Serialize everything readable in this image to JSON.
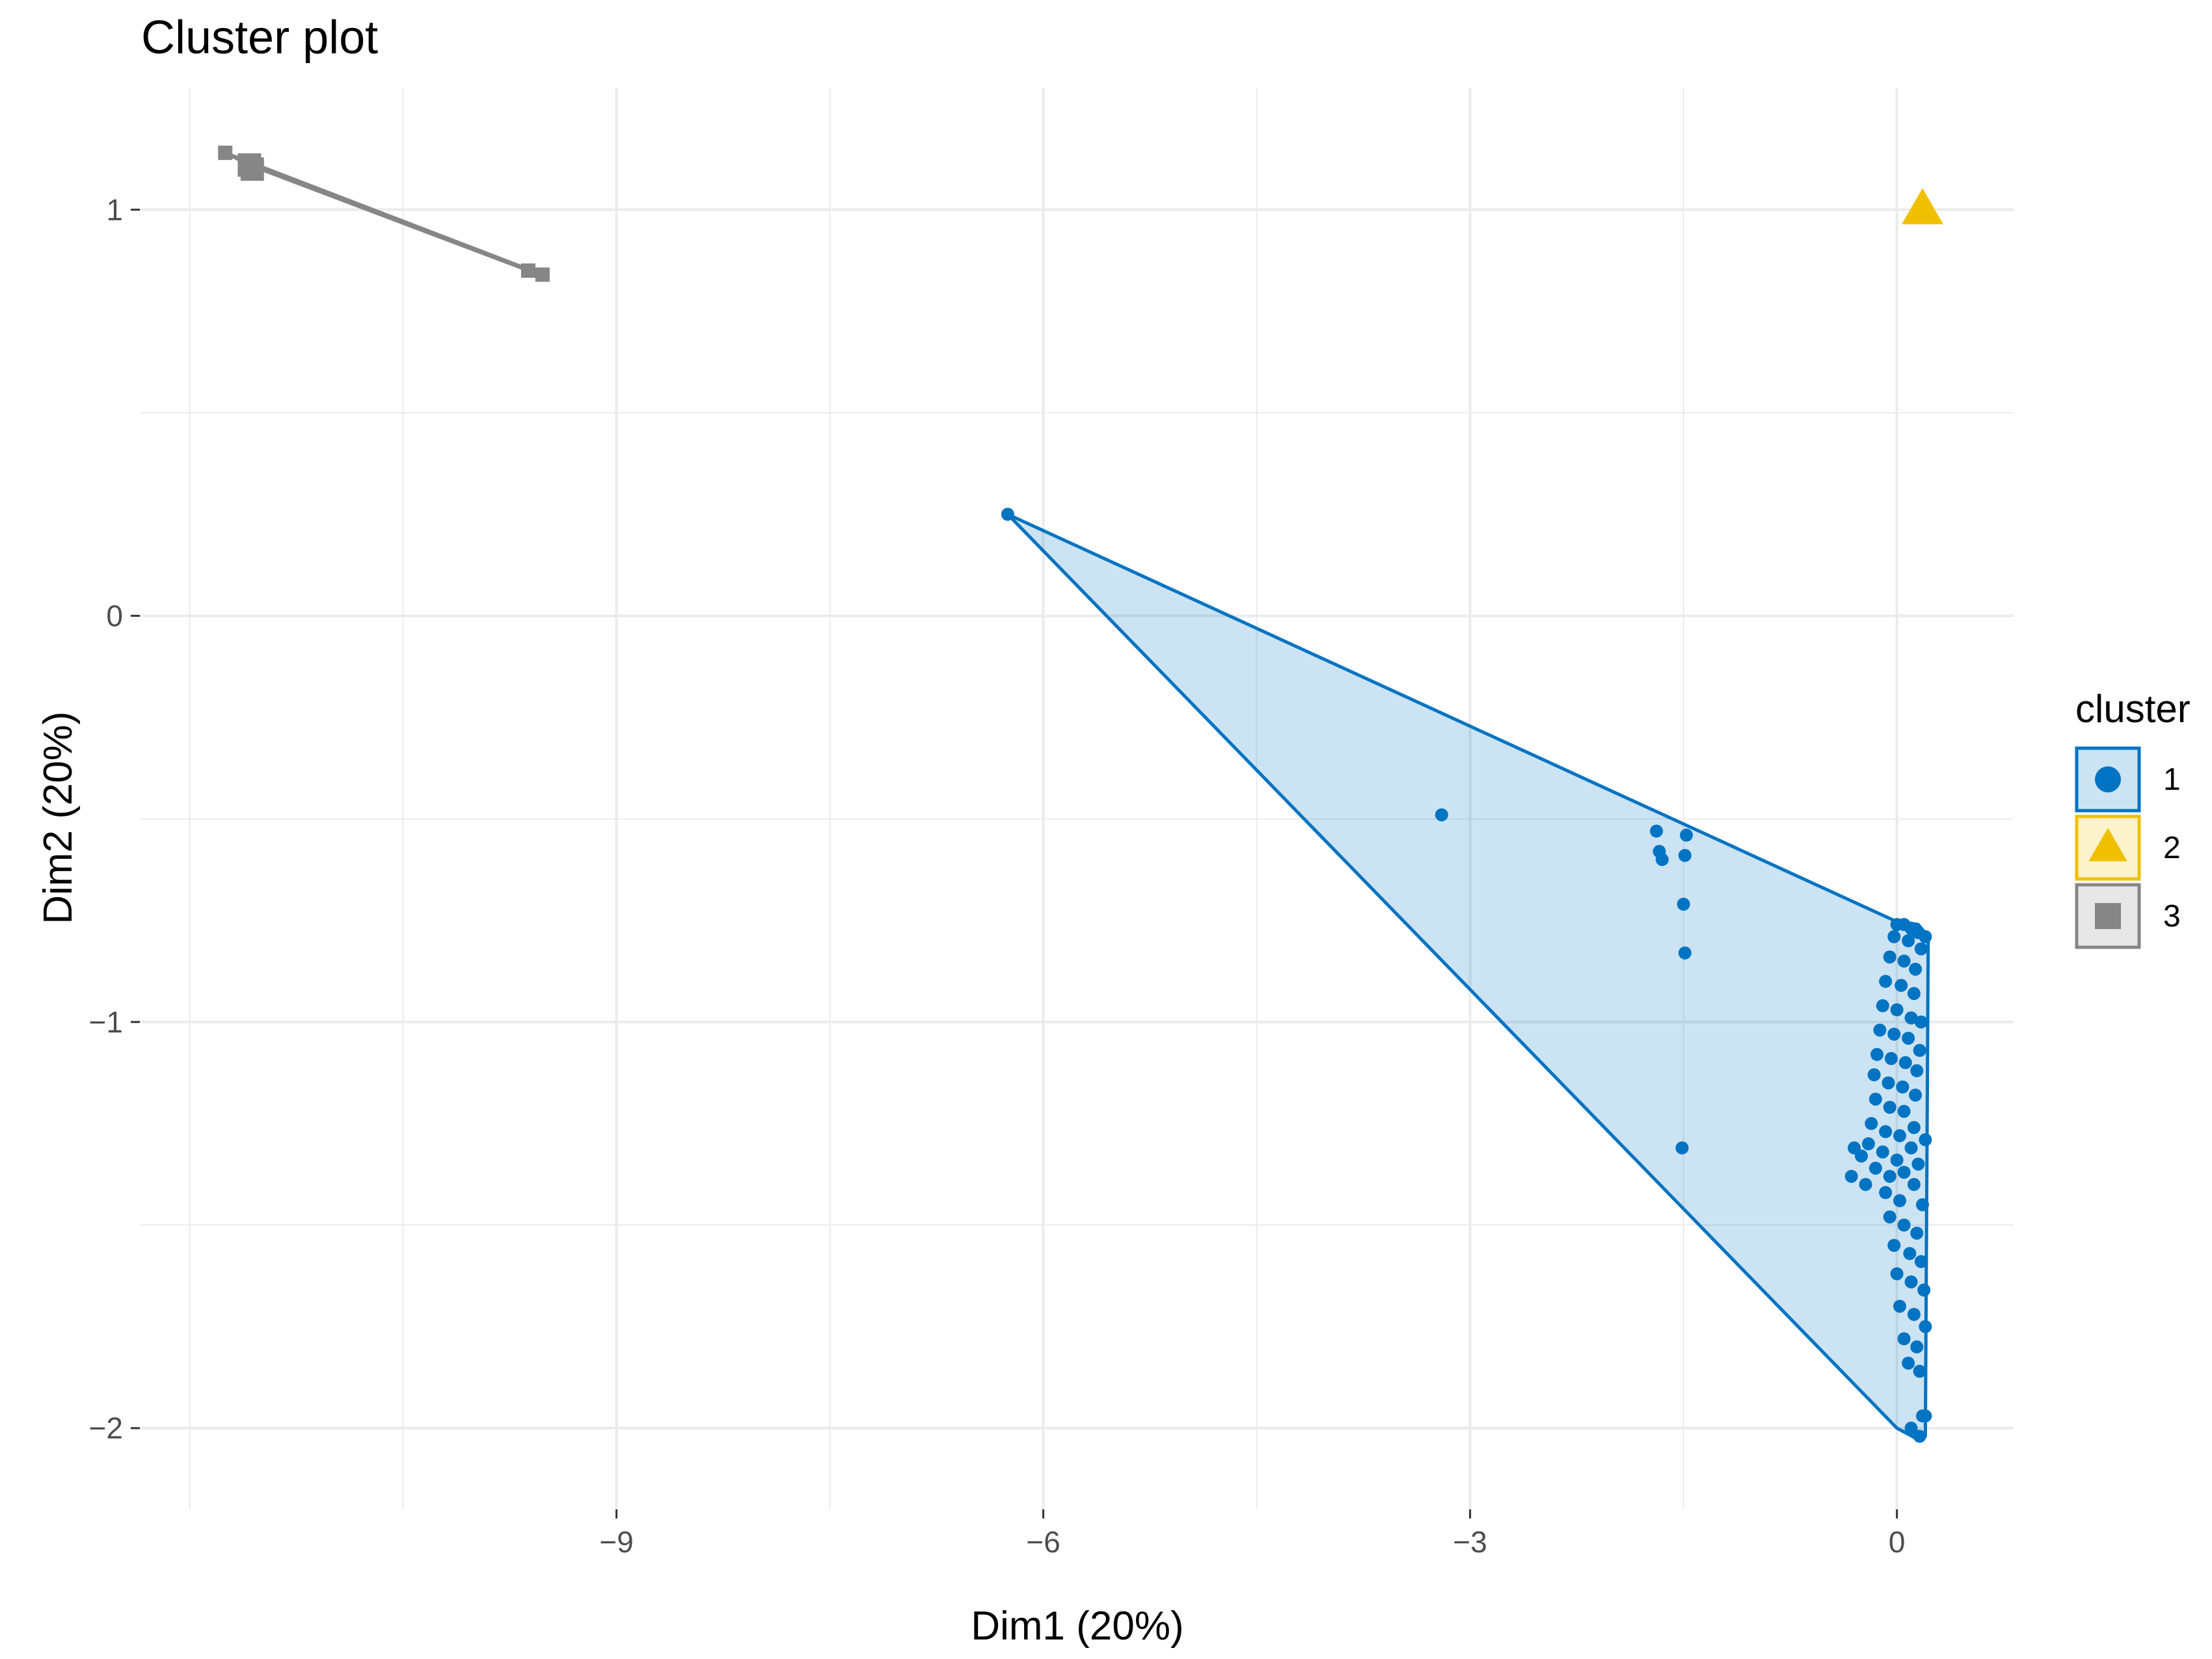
{
  "chart_data": {
    "type": "scatter",
    "title": "Cluster plot",
    "xlabel": "Dim1 (20%)",
    "ylabel": "Dim2 (20%)",
    "xlim": [
      -12.35,
      0.82
    ],
    "ylim": [
      -2.2,
      1.3
    ],
    "x_ticks": [
      -9,
      -6,
      -3,
      0
    ],
    "y_ticks": [
      -2,
      -1,
      0,
      1
    ],
    "x_tick_labels": [
      "−9",
      "−6",
      "−3",
      "0"
    ],
    "y_tick_labels": [
      "−2",
      "−1",
      "0",
      "1"
    ],
    "grid": true,
    "legend": {
      "title": "cluster",
      "placement": "right"
    },
    "colors": {
      "1": "#0073C2",
      "2": "#EFC000",
      "3": "#868686"
    },
    "series": [
      {
        "name": "1",
        "shape": "circle",
        "hull": [
          [
            -6.25,
            0.25
          ],
          [
            -0.02,
            -0.75
          ],
          [
            0.15,
            -0.76
          ],
          [
            0.22,
            -0.79
          ],
          [
            0.2,
            -2.02
          ],
          [
            0.16,
            -2.03
          ],
          [
            0.0,
            -2.0
          ]
        ],
        "points": [
          [
            -6.25,
            0.25
          ],
          [
            -3.2,
            -0.49
          ],
          [
            -1.69,
            -0.53
          ],
          [
            -1.67,
            -0.58
          ],
          [
            -1.65,
            -0.6
          ],
          [
            -1.48,
            -0.54
          ],
          [
            -1.49,
            -0.59
          ],
          [
            -1.5,
            -0.71
          ],
          [
            -1.49,
            -0.83
          ],
          [
            -1.51,
            -1.31
          ],
          [
            0.0,
            -0.76
          ],
          [
            0.05,
            -0.76
          ],
          [
            0.1,
            -0.77
          ],
          [
            0.15,
            -0.78
          ],
          [
            0.2,
            -0.79
          ],
          [
            -0.02,
            -0.79
          ],
          [
            0.08,
            -0.8
          ],
          [
            0.17,
            -0.82
          ],
          [
            -0.05,
            -0.84
          ],
          [
            0.05,
            -0.85
          ],
          [
            0.13,
            -0.87
          ],
          [
            -0.08,
            -0.9
          ],
          [
            0.03,
            -0.91
          ],
          [
            0.12,
            -0.93
          ],
          [
            -0.1,
            -0.96
          ],
          [
            0.0,
            -0.97
          ],
          [
            0.1,
            -0.99
          ],
          [
            -0.12,
            -1.02
          ],
          [
            -0.02,
            -1.03
          ],
          [
            0.08,
            -1.04
          ],
          [
            0.17,
            -1.0
          ],
          [
            -0.14,
            -1.08
          ],
          [
            -0.04,
            -1.09
          ],
          [
            0.06,
            -1.1
          ],
          [
            0.16,
            -1.07
          ],
          [
            -0.16,
            -1.13
          ],
          [
            -0.06,
            -1.15
          ],
          [
            0.04,
            -1.16
          ],
          [
            0.14,
            -1.12
          ],
          [
            -0.15,
            -1.19
          ],
          [
            -0.05,
            -1.21
          ],
          [
            0.05,
            -1.22
          ],
          [
            0.13,
            -1.18
          ],
          [
            -0.18,
            -1.25
          ],
          [
            -0.08,
            -1.27
          ],
          [
            0.02,
            -1.28
          ],
          [
            0.12,
            -1.26
          ],
          [
            -0.2,
            -1.3
          ],
          [
            -0.1,
            -1.32
          ],
          [
            0.0,
            -1.34
          ],
          [
            0.1,
            -1.31
          ],
          [
            0.2,
            -1.29
          ],
          [
            -0.25,
            -1.33
          ],
          [
            -0.3,
            -1.31
          ],
          [
            -0.15,
            -1.36
          ],
          [
            -0.05,
            -1.38
          ],
          [
            0.05,
            -1.37
          ],
          [
            0.15,
            -1.35
          ],
          [
            -0.22,
            -1.4
          ],
          [
            -0.32,
            -1.38
          ],
          [
            -0.08,
            -1.42
          ],
          [
            0.02,
            -1.44
          ],
          [
            0.12,
            -1.4
          ],
          [
            0.18,
            -1.45
          ],
          [
            -0.05,
            -1.48
          ],
          [
            0.05,
            -1.5
          ],
          [
            0.14,
            -1.52
          ],
          [
            -0.02,
            -1.55
          ],
          [
            0.09,
            -1.57
          ],
          [
            0.17,
            -1.59
          ],
          [
            0.0,
            -1.62
          ],
          [
            0.1,
            -1.64
          ],
          [
            0.19,
            -1.66
          ],
          [
            0.02,
            -1.7
          ],
          [
            0.12,
            -1.72
          ],
          [
            0.2,
            -1.75
          ],
          [
            0.05,
            -1.78
          ],
          [
            0.14,
            -1.8
          ],
          [
            0.08,
            -1.84
          ],
          [
            0.16,
            -1.86
          ],
          [
            0.18,
            -1.97
          ],
          [
            0.2,
            -1.97
          ],
          [
            0.1,
            -2.0
          ],
          [
            0.16,
            -2.02
          ]
        ]
      },
      {
        "name": "2",
        "shape": "triangle",
        "points": [
          [
            0.18,
            1.0
          ]
        ]
      },
      {
        "name": "3",
        "shape": "square",
        "hull": [
          [
            -11.75,
            1.14
          ],
          [
            -11.58,
            1.11
          ],
          [
            -9.62,
            0.85
          ],
          [
            -9.52,
            0.84
          ]
        ],
        "points": [
          [
            -11.75,
            1.14
          ],
          [
            -11.58,
            1.11
          ],
          [
            -11.56,
            1.1
          ],
          [
            -9.62,
            0.85
          ],
          [
            -9.52,
            0.84
          ]
        ]
      }
    ]
  }
}
